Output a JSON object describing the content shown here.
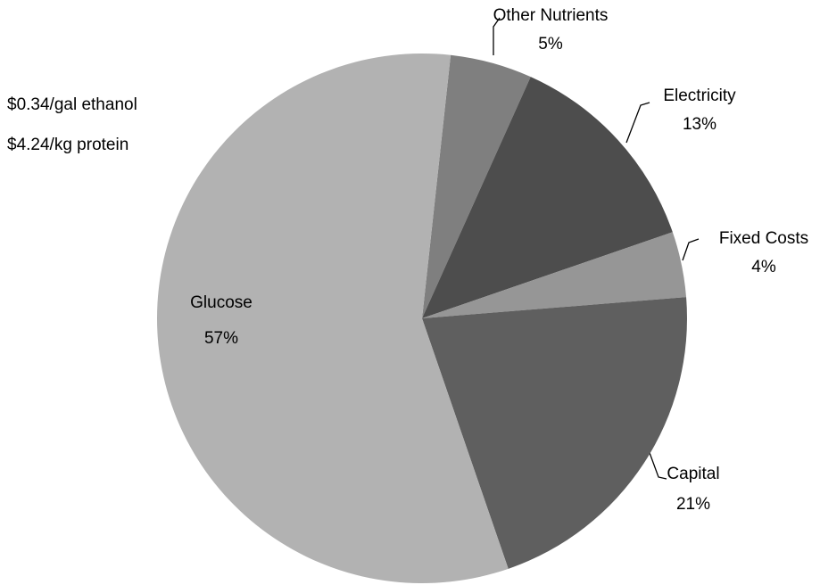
{
  "chart_data": {
    "type": "pie",
    "annotations": [
      "$0.34/gal ethanol",
      "$4.24/kg protein"
    ],
    "categories": [
      "Other Nutrients",
      "Electricity",
      "Fixed Costs",
      "Capital",
      "Glucose"
    ],
    "values": [
      5,
      13,
      4,
      21,
      57
    ],
    "value_labels": [
      "5%",
      "13%",
      "4%",
      "21%",
      "57%"
    ],
    "colors": [
      "#7f7f7f",
      "#4d4d4d",
      "#969696",
      "#5f5f5f",
      "#b2b2b2"
    ]
  }
}
